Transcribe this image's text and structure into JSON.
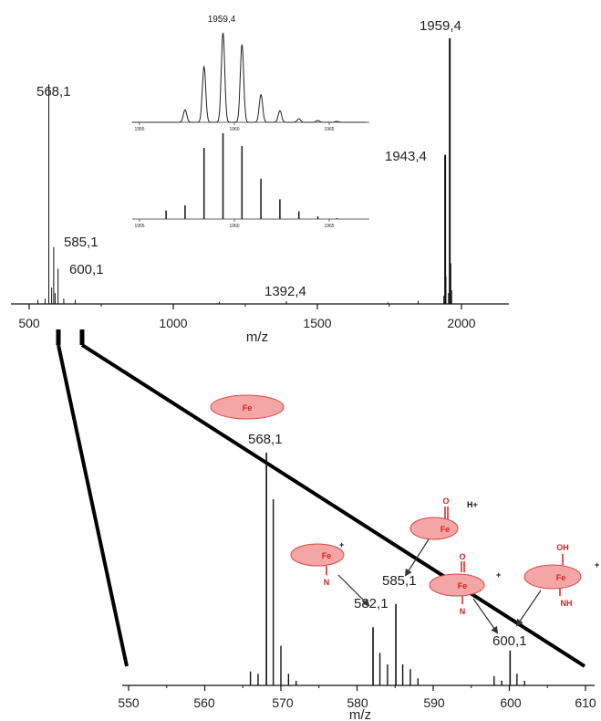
{
  "chart_data": [
    {
      "type": "line",
      "xlabel": "m/z",
      "ylabel": "",
      "xlim": [
        430,
        2190
      ],
      "ylim": [
        0,
        100
      ],
      "x_ticks": [
        "500",
        "1000",
        "1500",
        "2000"
      ],
      "peaks": [
        {
          "x": 568.1,
          "y": 81,
          "label": "568,1"
        },
        {
          "x": 585.1,
          "y": 21,
          "label": "585,1"
        },
        {
          "x": 600.1,
          "y": 13,
          "label": "600,1"
        },
        {
          "x": 1392.4,
          "y": 1,
          "label": "1392,4"
        },
        {
          "x": 1943.4,
          "y": 55,
          "label": "1943,4"
        },
        {
          "x": 1959.4,
          "y": 98,
          "label": "1959,4"
        }
      ],
      "minor_peaks": [
        {
          "x": 530,
          "y": 1.5
        },
        {
          "x": 555,
          "y": 2
        },
        {
          "x": 578,
          "y": 6
        },
        {
          "x": 590,
          "y": 4
        },
        {
          "x": 620,
          "y": 2
        },
        {
          "x": 660,
          "y": 1.5
        },
        {
          "x": 1160,
          "y": 0.8
        },
        {
          "x": 1745,
          "y": 0.6
        },
        {
          "x": 1850,
          "y": 1.2
        },
        {
          "x": 1939,
          "y": 3
        },
        {
          "x": 1946,
          "y": 10
        },
        {
          "x": 1955,
          "y": 4
        },
        {
          "x": 1963,
          "y": 15
        },
        {
          "x": 1966,
          "y": 5
        }
      ]
    },
    {
      "type": "line",
      "title": "1959,4",
      "xlim": [
        1955,
        1967
      ],
      "x_ticks": [
        "1955",
        "1960",
        "1965"
      ],
      "series": [
        {
          "values": [
            {
              "x": 1957.4,
              "y": 14
            },
            {
              "x": 1958.4,
              "y": 62
            },
            {
              "x": 1959.4,
              "y": 100
            },
            {
              "x": 1960.4,
              "y": 87
            },
            {
              "x": 1961.4,
              "y": 31
            },
            {
              "x": 1962.4,
              "y": 13
            },
            {
              "x": 1963.4,
              "y": 4
            },
            {
              "x": 1964.4,
              "y": 2
            },
            {
              "x": 1965.4,
              "y": 1
            }
          ]
        },
        {
          "values": [
            {
              "x": 1956.4,
              "y": 10
            },
            {
              "x": 1957.4,
              "y": 16
            },
            {
              "x": 1958.4,
              "y": 83
            },
            {
              "x": 1959.4,
              "y": 100
            },
            {
              "x": 1960.4,
              "y": 85
            },
            {
              "x": 1961.4,
              "y": 47
            },
            {
              "x": 1962.4,
              "y": 23
            },
            {
              "x": 1963.4,
              "y": 9
            },
            {
              "x": 1964.4,
              "y": 3
            },
            {
              "x": 1965.4,
              "y": 1
            }
          ]
        }
      ]
    },
    {
      "type": "line",
      "xlabel": "m/z",
      "xlim": [
        550,
        610
      ],
      "ylim": [
        0,
        100
      ],
      "x_ticks": [
        "550",
        "560",
        "570",
        "580",
        "590",
        "600",
        "610"
      ],
      "peaks": [
        {
          "x": 568.1,
          "y": 100,
          "label": "568,1"
        },
        {
          "x": 582.1,
          "y": 25,
          "label": "582,1"
        },
        {
          "x": 585.1,
          "y": 35,
          "label": "585,1"
        },
        {
          "x": 600.1,
          "y": 15,
          "label": "600,1"
        }
      ],
      "minor_peaks": [
        {
          "x": 566,
          "y": 6
        },
        {
          "x": 567,
          "y": 5
        },
        {
          "x": 569,
          "y": 80
        },
        {
          "x": 570,
          "y": 17
        },
        {
          "x": 571,
          "y": 5
        },
        {
          "x": 572,
          "y": 2
        },
        {
          "x": 583,
          "y": 14
        },
        {
          "x": 584,
          "y": 9
        },
        {
          "x": 586,
          "y": 9
        },
        {
          "x": 587,
          "y": 7
        },
        {
          "x": 588,
          "y": 3
        },
        {
          "x": 598,
          "y": 4
        },
        {
          "x": 599,
          "y": 2
        },
        {
          "x": 601,
          "y": 5
        },
        {
          "x": 602,
          "y": 2
        }
      ]
    }
  ],
  "structures": [
    {
      "metal": "Fe",
      "ligands": [],
      "charge": ""
    },
    {
      "metal": "Fe",
      "ligands": [
        "O"
      ],
      "charge": "H+"
    },
    {
      "metal": "Fe",
      "ligands": [
        "N"
      ],
      "charge": "+"
    },
    {
      "metal": "Fe",
      "ligands": [
        "O",
        "N"
      ],
      "charge": "+"
    },
    {
      "metal": "Fe",
      "ligands": [
        "OH",
        "NH"
      ],
      "charge": "+"
    }
  ],
  "colors": {
    "spectrum": "#111111",
    "highlight": "#f4a6a6",
    "highlight_outline": "#d94848",
    "chem_text": "#d8201d"
  }
}
